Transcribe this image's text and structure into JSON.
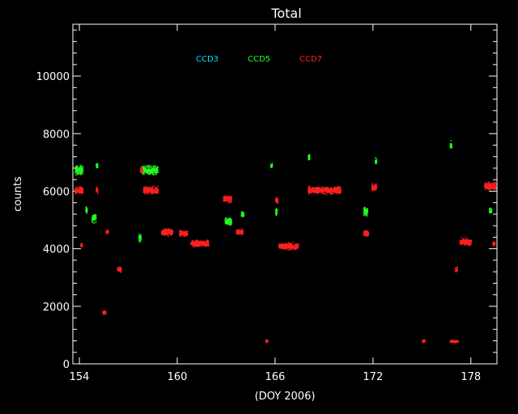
{
  "chart_data": {
    "type": "scatter",
    "title": "Total",
    "xlabel": "(DOY 2006)",
    "ylabel": "counts",
    "xlim": [
      153.6,
      179.6
    ],
    "ylim": [
      0,
      11800
    ],
    "x_ticks": [
      154,
      160,
      166,
      172,
      178
    ],
    "y_ticks": [
      0,
      2000,
      4000,
      6000,
      8000,
      10000
    ],
    "grid": false,
    "legend_position": "top-center",
    "series": [
      {
        "name": "CCD3",
        "color": "#00e5ff",
        "clusters": []
      },
      {
        "name": "CCD5",
        "color": "#22ff22",
        "clusters": [
          {
            "x0": 153.7,
            "x1": 154.2,
            "y": 6750,
            "spread": 220
          },
          {
            "x0": 154.35,
            "x1": 154.45,
            "y": 5350,
            "spread": 150
          },
          {
            "x0": 154.75,
            "x1": 155.0,
            "y": 5100,
            "spread": 220
          },
          {
            "x0": 155.0,
            "x1": 155.1,
            "y": 6900,
            "spread": 120
          },
          {
            "x0": 157.6,
            "x1": 157.75,
            "y": 4400,
            "spread": 180
          },
          {
            "x0": 157.75,
            "x1": 158.8,
            "y": 6750,
            "spread": 200
          },
          {
            "x0": 162.9,
            "x1": 163.3,
            "y": 4950,
            "spread": 180
          },
          {
            "x0": 163.9,
            "x1": 164.05,
            "y": 5200,
            "spread": 150
          },
          {
            "x0": 165.7,
            "x1": 165.8,
            "y": 6900,
            "spread": 120
          },
          {
            "x0": 166.0,
            "x1": 166.1,
            "y": 5300,
            "spread": 200
          },
          {
            "x0": 168.0,
            "x1": 168.1,
            "y": 7200,
            "spread": 150
          },
          {
            "x0": 171.4,
            "x1": 171.65,
            "y": 5300,
            "spread": 220
          },
          {
            "x0": 172.1,
            "x1": 172.2,
            "y": 7050,
            "spread": 150
          },
          {
            "x0": 176.7,
            "x1": 176.8,
            "y": 7600,
            "spread": 200
          },
          {
            "x0": 179.1,
            "x1": 179.25,
            "y": 5350,
            "spread": 150
          }
        ]
      },
      {
        "name": "CCD7",
        "color": "#ff2020",
        "clusters": [
          {
            "x0": 153.7,
            "x1": 154.2,
            "y": 6050,
            "spread": 160
          },
          {
            "x0": 154.05,
            "x1": 154.15,
            "y": 4150,
            "spread": 120
          },
          {
            "x0": 155.0,
            "x1": 155.1,
            "y": 6050,
            "spread": 150
          },
          {
            "x0": 155.4,
            "x1": 155.6,
            "y": 1800,
            "spread": 100
          },
          {
            "x0": 155.6,
            "x1": 155.75,
            "y": 4600,
            "spread": 100
          },
          {
            "x0": 156.3,
            "x1": 156.55,
            "y": 3300,
            "spread": 130
          },
          {
            "x0": 157.7,
            "x1": 157.85,
            "y": 6750,
            "spread": 150
          },
          {
            "x0": 157.9,
            "x1": 158.8,
            "y": 6050,
            "spread": 170
          },
          {
            "x0": 159.0,
            "x1": 159.7,
            "y": 4600,
            "spread": 160
          },
          {
            "x0": 160.1,
            "x1": 160.6,
            "y": 4550,
            "spread": 130
          },
          {
            "x0": 160.8,
            "x1": 161.9,
            "y": 4200,
            "spread": 140
          },
          {
            "x0": 162.8,
            "x1": 163.3,
            "y": 5750,
            "spread": 170
          },
          {
            "x0": 163.6,
            "x1": 164.0,
            "y": 4600,
            "spread": 130
          },
          {
            "x0": 165.4,
            "x1": 165.55,
            "y": 800,
            "spread": 80
          },
          {
            "x0": 166.0,
            "x1": 166.15,
            "y": 5700,
            "spread": 150
          },
          {
            "x0": 166.2,
            "x1": 167.4,
            "y": 4100,
            "spread": 150
          },
          {
            "x0": 168.0,
            "x1": 170.0,
            "y": 6050,
            "spread": 160
          },
          {
            "x0": 171.4,
            "x1": 171.7,
            "y": 4550,
            "spread": 130
          },
          {
            "x0": 171.9,
            "x1": 172.2,
            "y": 6150,
            "spread": 160
          },
          {
            "x0": 175.0,
            "x1": 175.15,
            "y": 800,
            "spread": 70
          },
          {
            "x0": 176.7,
            "x1": 177.2,
            "y": 800,
            "spread": 60
          },
          {
            "x0": 177.0,
            "x1": 177.15,
            "y": 3300,
            "spread": 150
          },
          {
            "x0": 177.3,
            "x1": 178.0,
            "y": 4250,
            "spread": 160
          },
          {
            "x0": 178.8,
            "x1": 179.5,
            "y": 6200,
            "spread": 180
          },
          {
            "x0": 179.3,
            "x1": 179.45,
            "y": 4200,
            "spread": 100
          }
        ]
      }
    ]
  }
}
